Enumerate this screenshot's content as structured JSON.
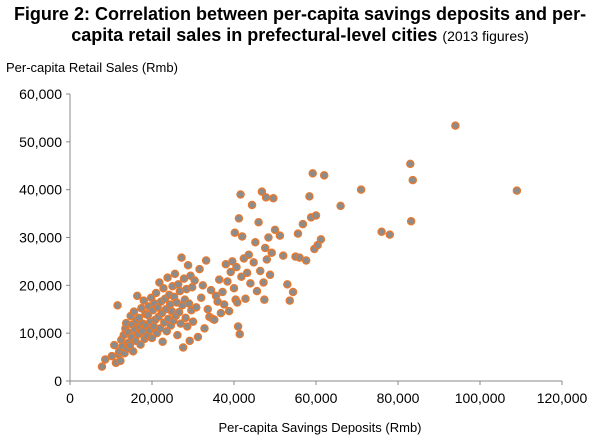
{
  "title": {
    "line1": "Figure 2: Correlation between per-capita savings deposits and per-",
    "line2": "capita retail sales in prefectural-level cities",
    "suffix": "(2013 figures)"
  },
  "chart_data": {
    "type": "scatter",
    "ylabel": "Per-capita Retail Sales (Rmb)",
    "xlabel": "Per-capita Savings Deposits (Rmb)",
    "xlim": [
      0,
      120000
    ],
    "ylim": [
      0,
      60000
    ],
    "x_ticks": [
      0,
      20000,
      40000,
      60000,
      80000,
      100000,
      120000
    ],
    "y_ticks": [
      0,
      10000,
      20000,
      30000,
      40000,
      50000,
      60000
    ],
    "x_tick_labels": [
      "0",
      "20,000",
      "40,000",
      "60,000",
      "80,000",
      "100,000",
      "120,000"
    ],
    "y_tick_labels": [
      "0",
      "10,000",
      "20,000",
      "30,000",
      "40,000",
      "50,000",
      "60,000"
    ],
    "grid": false,
    "marker_fill": "#8C8C8C",
    "marker_edge": "#E8792E",
    "points": [
      [
        7800,
        3000
      ],
      [
        8600,
        4500
      ],
      [
        10200,
        5200
      ],
      [
        10800,
        7500
      ],
      [
        11200,
        3800
      ],
      [
        11600,
        15800
      ],
      [
        11800,
        5600
      ],
      [
        12000,
        6200
      ],
      [
        12300,
        4200
      ],
      [
        12500,
        8600
      ],
      [
        12800,
        7200
      ],
      [
        13100,
        9600
      ],
      [
        13300,
        5800
      ],
      [
        13500,
        11000
      ],
      [
        13700,
        12100
      ],
      [
        13900,
        6800
      ],
      [
        14100,
        10200
      ],
      [
        14300,
        8000
      ],
      [
        14600,
        7400
      ],
      [
        14800,
        13600
      ],
      [
        15000,
        9200
      ],
      [
        15200,
        11800
      ],
      [
        15400,
        6200
      ],
      [
        15600,
        14500
      ],
      [
        15800,
        10800
      ],
      [
        16000,
        8400
      ],
      [
        16200,
        12600
      ],
      [
        16400,
        17800
      ],
      [
        16600,
        9800
      ],
      [
        16800,
        13200
      ],
      [
        17000,
        11200
      ],
      [
        17200,
        7600
      ],
      [
        17400,
        15200
      ],
      [
        17600,
        10400
      ],
      [
        17800,
        12000
      ],
      [
        18000,
        16800
      ],
      [
        18200,
        8800
      ],
      [
        18400,
        14000
      ],
      [
        18600,
        11600
      ],
      [
        18800,
        9400
      ],
      [
        19000,
        13800
      ],
      [
        19200,
        15600
      ],
      [
        19400,
        10600
      ],
      [
        19600,
        12400
      ],
      [
        19800,
        17400
      ],
      [
        20000,
        9000
      ],
      [
        20200,
        14800
      ],
      [
        20400,
        11400
      ],
      [
        20600,
        16200
      ],
      [
        20800,
        12800
      ],
      [
        21000,
        18400
      ],
      [
        21200,
        10000
      ],
      [
        21400,
        15400
      ],
      [
        21600,
        13400
      ],
      [
        21800,
        20600
      ],
      [
        22000,
        11000
      ],
      [
        22200,
        16600
      ],
      [
        22400,
        14200
      ],
      [
        22600,
        8200
      ],
      [
        22800,
        19400
      ],
      [
        23000,
        12200
      ],
      [
        23200,
        17200
      ],
      [
        23400,
        15000
      ],
      [
        23600,
        10400
      ],
      [
        23800,
        21600
      ],
      [
        24000,
        13000
      ],
      [
        24200,
        18000
      ],
      [
        24400,
        16000
      ],
      [
        24600,
        11600
      ],
      [
        24800,
        14600
      ],
      [
        25000,
        19800
      ],
      [
        25200,
        12600
      ],
      [
        25400,
        17600
      ],
      [
        25600,
        22400
      ],
      [
        25800,
        13600
      ],
      [
        26000,
        16400
      ],
      [
        26200,
        9600
      ],
      [
        26400,
        20200
      ],
      [
        26600,
        14400
      ],
      [
        26800,
        18800
      ],
      [
        27000,
        12000
      ],
      [
        27200,
        25800
      ],
      [
        27400,
        15800
      ],
      [
        27600,
        7000
      ],
      [
        27800,
        21400
      ],
      [
        28000,
        17000
      ],
      [
        28200,
        13200
      ],
      [
        28400,
        19200
      ],
      [
        28600,
        11400
      ],
      [
        28800,
        24200
      ],
      [
        29000,
        16200
      ],
      [
        29200,
        8400
      ],
      [
        29400,
        22000
      ],
      [
        29600,
        14800
      ],
      [
        29800,
        19600
      ],
      [
        30000,
        12400
      ],
      [
        30400,
        21000
      ],
      [
        30800,
        15400
      ],
      [
        31200,
        9200
      ],
      [
        31600,
        23400
      ],
      [
        32000,
        17400
      ],
      [
        32400,
        20000
      ],
      [
        32800,
        11000
      ],
      [
        33200,
        25200
      ],
      [
        33600,
        15000
      ],
      [
        34000,
        13400
      ],
      [
        34400,
        19000
      ],
      [
        34800,
        13000
      ],
      [
        35200,
        12800
      ],
      [
        35600,
        17800
      ],
      [
        36000,
        16600
      ],
      [
        36400,
        21200
      ],
      [
        36800,
        14200
      ],
      [
        37200,
        18600
      ],
      [
        37600,
        16000
      ],
      [
        38000,
        24400
      ],
      [
        38400,
        20800
      ],
      [
        38800,
        14600
      ],
      [
        39200,
        22800
      ],
      [
        39600,
        25000
      ],
      [
        40000,
        19400
      ],
      [
        40200,
        31000
      ],
      [
        40400,
        17000
      ],
      [
        40600,
        23800
      ],
      [
        40800,
        16400
      ],
      [
        41000,
        11400
      ],
      [
        41200,
        34000
      ],
      [
        41400,
        9800
      ],
      [
        41600,
        39000
      ],
      [
        41800,
        21800
      ],
      [
        42000,
        30200
      ],
      [
        42400,
        25600
      ],
      [
        42800,
        17200
      ],
      [
        43200,
        22600
      ],
      [
        43600,
        26400
      ],
      [
        44000,
        20400
      ],
      [
        44400,
        36800
      ],
      [
        44800,
        24800
      ],
      [
        45200,
        29000
      ],
      [
        45600,
        18800
      ],
      [
        46000,
        33200
      ],
      [
        46400,
        23000
      ],
      [
        46800,
        39600
      ],
      [
        47200,
        20600
      ],
      [
        47400,
        17000
      ],
      [
        47600,
        27800
      ],
      [
        47800,
        38400
      ],
      [
        48000,
        25400
      ],
      [
        48400,
        30000
      ],
      [
        48800,
        22200
      ],
      [
        49200,
        26800
      ],
      [
        49600,
        38200
      ],
      [
        50000,
        31600
      ],
      [
        51200,
        30400
      ],
      [
        52000,
        26200
      ],
      [
        53000,
        20200
      ],
      [
        53600,
        16800
      ],
      [
        54400,
        18600
      ],
      [
        55000,
        26000
      ],
      [
        55600,
        30800
      ],
      [
        56000,
        25800
      ],
      [
        56800,
        32800
      ],
      [
        57600,
        25200
      ],
      [
        58400,
        38600
      ],
      [
        58800,
        34200
      ],
      [
        59200,
        43400
      ],
      [
        59600,
        27600
      ],
      [
        60000,
        34600
      ],
      [
        60400,
        28400
      ],
      [
        61200,
        29600
      ],
      [
        62000,
        43000
      ],
      [
        66000,
        36600
      ],
      [
        71000,
        40000
      ],
      [
        76000,
        31200
      ],
      [
        78000,
        30600
      ],
      [
        83000,
        45400
      ],
      [
        83200,
        33400
      ],
      [
        83600,
        42000
      ],
      [
        94000,
        53400
      ],
      [
        109000,
        39800
      ]
    ]
  }
}
